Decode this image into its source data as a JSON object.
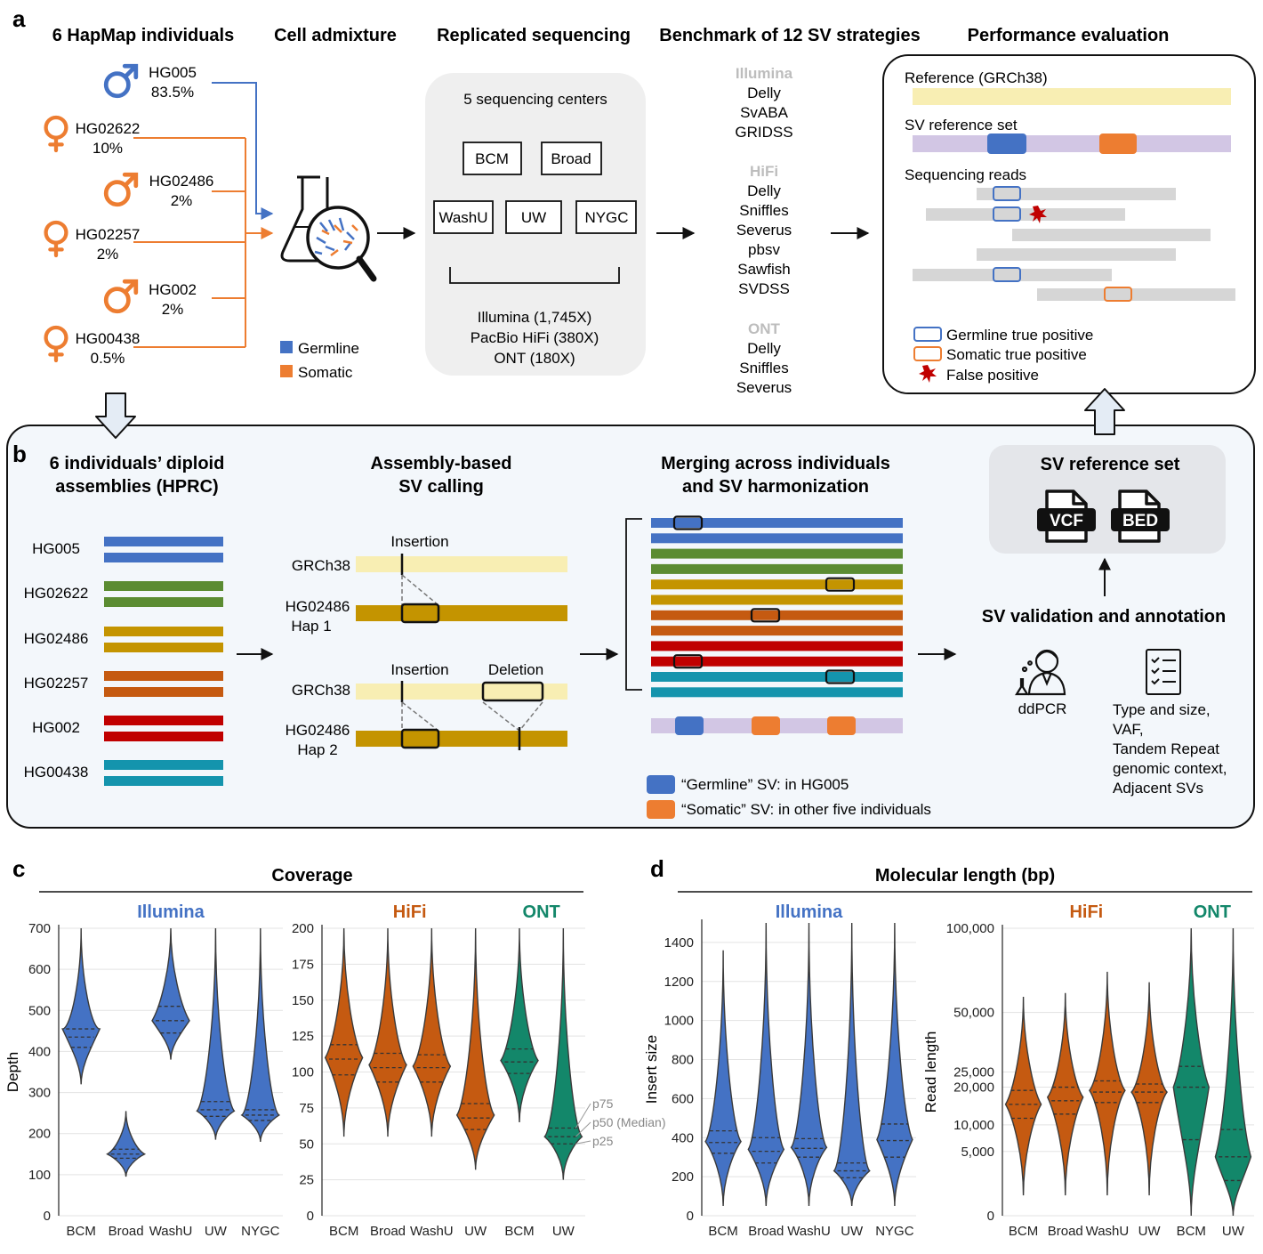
{
  "colors": {
    "germline": "#4472c4",
    "somatic": "#ed7d31",
    "illumina": "#4472c4",
    "hifi": "#c55a11",
    "ont": "#13876a",
    "ref_yellow": "#f8eeb3",
    "sv_purple": "#d2c6e4",
    "read_gray": "#d6d6d6",
    "panel_b_bg": "#f3f7fb",
    "false_pos": "#c00000",
    "hap_colors": [
      "#4472c4",
      "#5b8c32",
      "#c49400",
      "#c55a11",
      "#c00000",
      "#1494ad"
    ]
  },
  "panel_a": {
    "letter": "a",
    "headers": [
      "6 HapMap individuals",
      "Cell admixture",
      "Replicated sequencing",
      "Benchmark of 12 SV strategies",
      "Performance evaluation"
    ],
    "individuals": [
      {
        "name": "HG005",
        "pct": "83.5%",
        "sex": "male",
        "group": "germline"
      },
      {
        "name": "HG02622",
        "pct": "10%",
        "sex": "female",
        "group": "somatic"
      },
      {
        "name": "HG02486",
        "pct": "2%",
        "sex": "male",
        "group": "somatic"
      },
      {
        "name": "HG02257",
        "pct": "2%",
        "sex": "female",
        "group": "somatic"
      },
      {
        "name": "HG002",
        "pct": "2%",
        "sex": "male",
        "group": "somatic"
      },
      {
        "name": "HG00438",
        "pct": "0.5%",
        "sex": "female",
        "group": "somatic"
      }
    ],
    "legend": {
      "germline": "Germline",
      "somatic": "Somatic"
    },
    "seq_box": {
      "title": "5 sequencing centers",
      "centers": [
        "BCM",
        "Broad",
        "WashU",
        "UW",
        "NYGC"
      ],
      "platforms": [
        "Illumina (1,745X)",
        "PacBio HiFi (380X)",
        "ONT (180X)"
      ]
    },
    "strategies": [
      {
        "platform": "Illumina",
        "tools": [
          "Delly",
          "SvABA",
          "GRIDSS"
        ]
      },
      {
        "platform": "HiFi",
        "tools": [
          "Delly",
          "Sniffles",
          "Severus",
          "pbsv",
          "Sawfish",
          "SVDSS"
        ]
      },
      {
        "platform": "ONT",
        "tools": [
          "Delly",
          "Sniffles",
          "Severus"
        ]
      }
    ],
    "eval": {
      "reference": "Reference (GRCh38)",
      "sv_set": "SV reference set",
      "reads": "Sequencing reads",
      "legend": [
        "Germline true positive",
        "Somatic true positive",
        "False positive"
      ]
    }
  },
  "panel_b": {
    "letter": "b",
    "col1_title": [
      "6 individuals’ diploid",
      "assemblies (HPRC)"
    ],
    "haplotypes": [
      "HG005",
      "HG02622",
      "HG02486",
      "HG02257",
      "HG002",
      "HG00438"
    ],
    "col2_title": [
      "Assembly-based",
      "SV calling"
    ],
    "sv_calling": {
      "insertion": "Insertion",
      "deletion": "Deletion",
      "ref": "GRCh38",
      "hap1": [
        "HG02486",
        "Hap 1"
      ],
      "hap2": [
        "HG02486",
        "Hap 2"
      ]
    },
    "col3_title": [
      "Merging across individuals",
      "and SV harmonization"
    ],
    "merge_legend": [
      "“Germline” SV: in HG005",
      "“Somatic” SV: in other five individuals"
    ],
    "ref_set": {
      "title": "SV reference set",
      "files": [
        "VCF",
        "BED"
      ]
    },
    "validation": {
      "title": "SV validation and annotation",
      "method": "ddPCR",
      "annotations": [
        "Type and size,",
        "VAF,",
        "Tandem Repeat",
        "genomic context,",
        "Adjacent SVs"
      ]
    }
  },
  "panel_c": {
    "letter": "c",
    "title": "Coverage",
    "chart_data": [
      {
        "type": "violin",
        "platform_label": "Illumina",
        "ylabel": "Depth",
        "ylim": [
          0,
          700
        ],
        "yticks": [
          0,
          100,
          200,
          300,
          400,
          500,
          600,
          700
        ],
        "categories": [
          "BCM",
          "Broad",
          "WashU",
          "UW",
          "NYGC"
        ],
        "series": [
          {
            "category": "BCM",
            "platform": "Illumina",
            "min": 320,
            "max": 700,
            "mode": 455,
            "p25": 410,
            "p50": 435,
            "p75": 455
          },
          {
            "category": "Broad",
            "platform": "Illumina",
            "min": 95,
            "max": 255,
            "mode": 150,
            "p25": 140,
            "p50": 150,
            "p75": 162
          },
          {
            "category": "WashU",
            "platform": "Illumina",
            "min": 380,
            "max": 700,
            "mode": 475,
            "p25": 445,
            "p50": 475,
            "p75": 510
          },
          {
            "category": "UW",
            "platform": "Illumina",
            "min": 185,
            "max": 700,
            "mode": 255,
            "p25": 242,
            "p50": 258,
            "p75": 278
          },
          {
            "category": "NYGC",
            "platform": "Illumina",
            "min": 180,
            "max": 700,
            "mode": 245,
            "p25": 232,
            "p50": 245,
            "p75": 258
          }
        ]
      },
      {
        "type": "violin",
        "platform_labels": [
          "HiFi",
          "ONT"
        ],
        "ylim": [
          0,
          200
        ],
        "yticks": [
          0,
          25,
          50,
          75,
          100,
          125,
          150,
          175,
          200
        ],
        "categories": [
          "BCM",
          "Broad",
          "WashU",
          "UW",
          "BCM",
          "UW"
        ],
        "series": [
          {
            "category": "BCM",
            "platform": "HiFi",
            "min": 55,
            "max": 200,
            "mode": 110,
            "p25": 98,
            "p50": 109,
            "p75": 119
          },
          {
            "category": "Broad",
            "platform": "HiFi",
            "min": 55,
            "max": 200,
            "mode": 105,
            "p25": 93,
            "p50": 103,
            "p75": 113
          },
          {
            "category": "WashU",
            "platform": "HiFi",
            "min": 55,
            "max": 200,
            "mode": 104,
            "p25": 93,
            "p50": 103,
            "p75": 112
          },
          {
            "category": "UW",
            "platform": "HiFi",
            "min": 32,
            "max": 200,
            "mode": 70,
            "p25": 60,
            "p50": 68,
            "p75": 78
          },
          {
            "category": "BCM",
            "platform": "ONT",
            "min": 65,
            "max": 200,
            "mode": 108,
            "p25": 99,
            "p50": 107,
            "p75": 116
          },
          {
            "category": "UW",
            "platform": "ONT",
            "min": 25,
            "max": 200,
            "mode": 55,
            "p25": 50,
            "p50": 55,
            "p75": 61
          }
        ],
        "annotations": [
          "p75",
          "p50 (Median)",
          "p25"
        ]
      }
    ]
  },
  "panel_d": {
    "letter": "d",
    "title": "Molecular length (bp)",
    "chart_data": [
      {
        "type": "violin",
        "platform_label": "Illumina",
        "ylabel": "Insert size",
        "ylim": [
          0,
          1500
        ],
        "yticks": [
          0,
          200,
          400,
          600,
          800,
          1000,
          1200,
          1400
        ],
        "categories": [
          "BCM",
          "Broad",
          "WashU",
          "UW",
          "NYGC"
        ],
        "series": [
          {
            "category": "BCM",
            "platform": "Illumina",
            "min": 50,
            "max": 1360,
            "mode": 380,
            "p25": 320,
            "p50": 375,
            "p75": 435
          },
          {
            "category": "Broad",
            "platform": "Illumina",
            "min": 50,
            "max": 1500,
            "mode": 340,
            "p25": 270,
            "p50": 330,
            "p75": 400
          },
          {
            "category": "WashU",
            "platform": "Illumina",
            "min": 50,
            "max": 1500,
            "mode": 350,
            "p25": 300,
            "p50": 345,
            "p75": 395
          },
          {
            "category": "UW",
            "platform": "Illumina",
            "min": 50,
            "max": 1500,
            "mode": 230,
            "p25": 195,
            "p50": 230,
            "p75": 270
          },
          {
            "category": "NYGC",
            "platform": "Illumina",
            "min": 50,
            "max": 1500,
            "mode": 390,
            "p25": 300,
            "p50": 385,
            "p75": 470
          }
        ]
      },
      {
        "type": "violin",
        "platform_labels": [
          "HiFi",
          "ONT"
        ],
        "ylabel": "Read length",
        "yscale": "sqrt",
        "ylim": [
          0,
          100000
        ],
        "yticks": [
          0,
          5000,
          10000,
          20000,
          25000,
          50000,
          100000
        ],
        "ytick_labels": [
          "0",
          "5,000",
          "10,000",
          "20,000",
          "25,000",
          "50,000",
          "100,000"
        ],
        "categories": [
          "BCM",
          "Broad",
          "WashU",
          "UW",
          "BCM",
          "UW"
        ],
        "series": [
          {
            "category": "BCM",
            "platform": "HiFi",
            "min": 500,
            "max": 58000,
            "mode": 15000,
            "p25": 11500,
            "p50": 15000,
            "p75": 19000
          },
          {
            "category": "Broad",
            "platform": "HiFi",
            "min": 500,
            "max": 60000,
            "mode": 17000,
            "p25": 12500,
            "p50": 16000,
            "p75": 20000
          },
          {
            "category": "WashU",
            "platform": "HiFi",
            "min": 500,
            "max": 72000,
            "mode": 19000,
            "p25": 15500,
            "p50": 18500,
            "p75": 22000
          },
          {
            "category": "UW",
            "platform": "HiFi",
            "min": 500,
            "max": 66000,
            "mode": 18500,
            "p25": 15500,
            "p50": 18500,
            "p75": 21000
          },
          {
            "category": "BCM",
            "platform": "ONT",
            "min": 0,
            "max": 100000,
            "mode": 20000,
            "p25": 7000,
            "p50": 20000,
            "p75": 27000
          },
          {
            "category": "UW",
            "platform": "ONT",
            "min": 0,
            "max": 100000,
            "mode": 4200,
            "p25": 1500,
            "p50": 4200,
            "p75": 9000
          }
        ],
        "sqrt_scale_note": false
      }
    ]
  }
}
